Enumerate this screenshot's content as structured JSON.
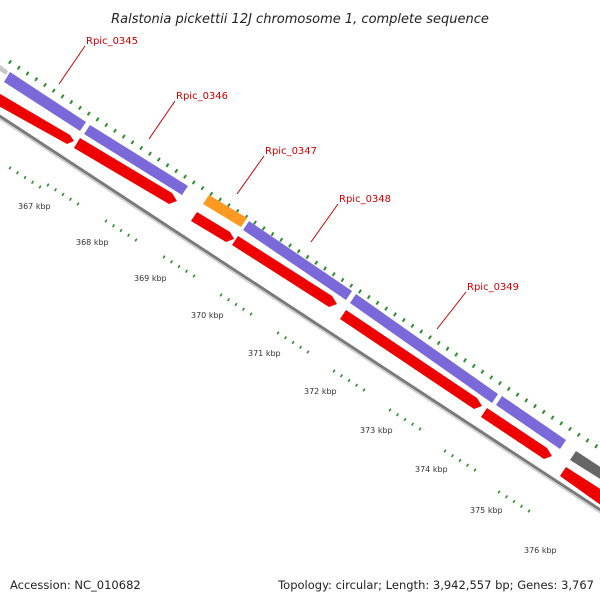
{
  "title": "Ralstonia pickettii 12J chromosome 1, complete sequence",
  "accession": "Accession: NC_010682",
  "topology": "Topology: circular; Length: 3,942,557 bp; Genes: 3,767",
  "colors": {
    "background": "#ffffff",
    "backbone": "#888888",
    "forward_gene": "#7b68d9",
    "reverse_gene": "#ee0000",
    "highlight_gene": "#ff9922",
    "other_gene_light": "#c8c8c8",
    "other_gene_dark": "#666666",
    "tick": "#2e8b2e",
    "label": "#cc0000"
  },
  "gene_labels": [
    "Rpic_0345",
    "Rpic_0346",
    "Rpic_0347",
    "Rpic_0348",
    "Rpic_0349"
  ],
  "kbp_labels": [
    "367 kbp",
    "368 kbp",
    "369 kbp",
    "370 kbp",
    "371 kbp",
    "372 kbp",
    "373 kbp",
    "374 kbp",
    "375 kbp",
    "376 kbp"
  ]
}
